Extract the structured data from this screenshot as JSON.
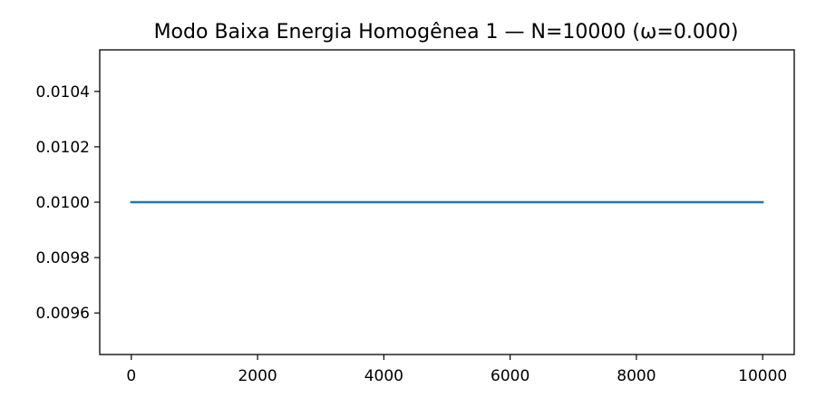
{
  "chart_data": {
    "type": "line",
    "title": "Modo Baixa Energia Homogênea 1 — N=10000 (ω=0.000)",
    "xlabel": "",
    "ylabel": "",
    "xlim": [
      -500,
      10500
    ],
    "ylim": [
      0.00945,
      0.01055
    ],
    "xticks": [
      0,
      2000,
      4000,
      6000,
      8000,
      10000
    ],
    "xtick_labels": [
      "0",
      "2000",
      "4000",
      "6000",
      "8000",
      "10000"
    ],
    "yticks": [
      0.0096,
      0.0098,
      0.01,
      0.0102,
      0.0104
    ],
    "ytick_labels": [
      "0.0096",
      "0.0098",
      "0.0100",
      "0.0102",
      "0.0104"
    ],
    "grid": false,
    "series": [
      {
        "x": [
          0,
          10000
        ],
        "y": [
          0.01,
          0.01
        ],
        "color": "#1f77b4"
      }
    ]
  }
}
